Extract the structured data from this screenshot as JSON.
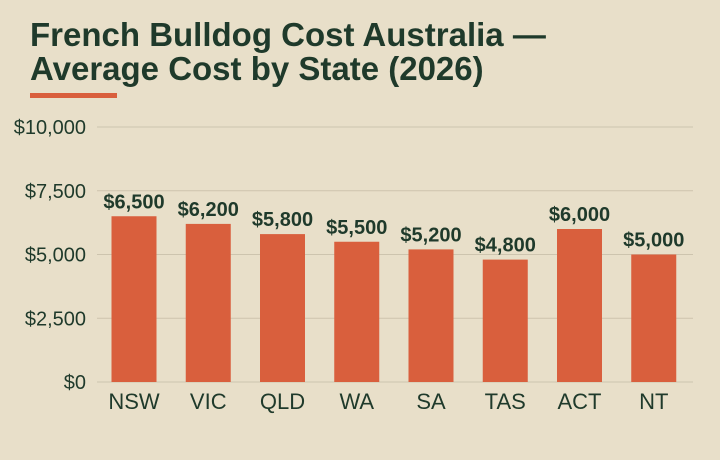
{
  "chart_data": {
    "type": "bar",
    "title": "French Bulldog Cost Australia — Average Cost by State (2026)",
    "categories": [
      "NSW",
      "VIC",
      "QLD",
      "WA",
      "SA",
      "TAS",
      "ACT",
      "NT"
    ],
    "values": [
      6500,
      6200,
      5800,
      5500,
      5200,
      4800,
      6000,
      5000
    ],
    "data_labels": [
      "$6,500",
      "$6,200",
      "$5,800",
      "$5,500",
      "$5,200",
      "$4,800",
      "$6,000",
      "$5,000"
    ],
    "ylim": [
      0,
      10000
    ],
    "yticks": [
      0,
      2500,
      5000,
      7500,
      10000
    ],
    "ytick_labels": [
      "$0",
      "$2,500",
      "$5,000",
      "$7,500",
      "$10,000"
    ],
    "grid": true,
    "xlabel": "",
    "ylabel": ""
  },
  "colors": {
    "background": "#e8dfc9",
    "bar": "#d95f3d",
    "text": "#1f3a2b",
    "grid": "#cdc4ae",
    "accent_underline": "#d95f3d"
  }
}
